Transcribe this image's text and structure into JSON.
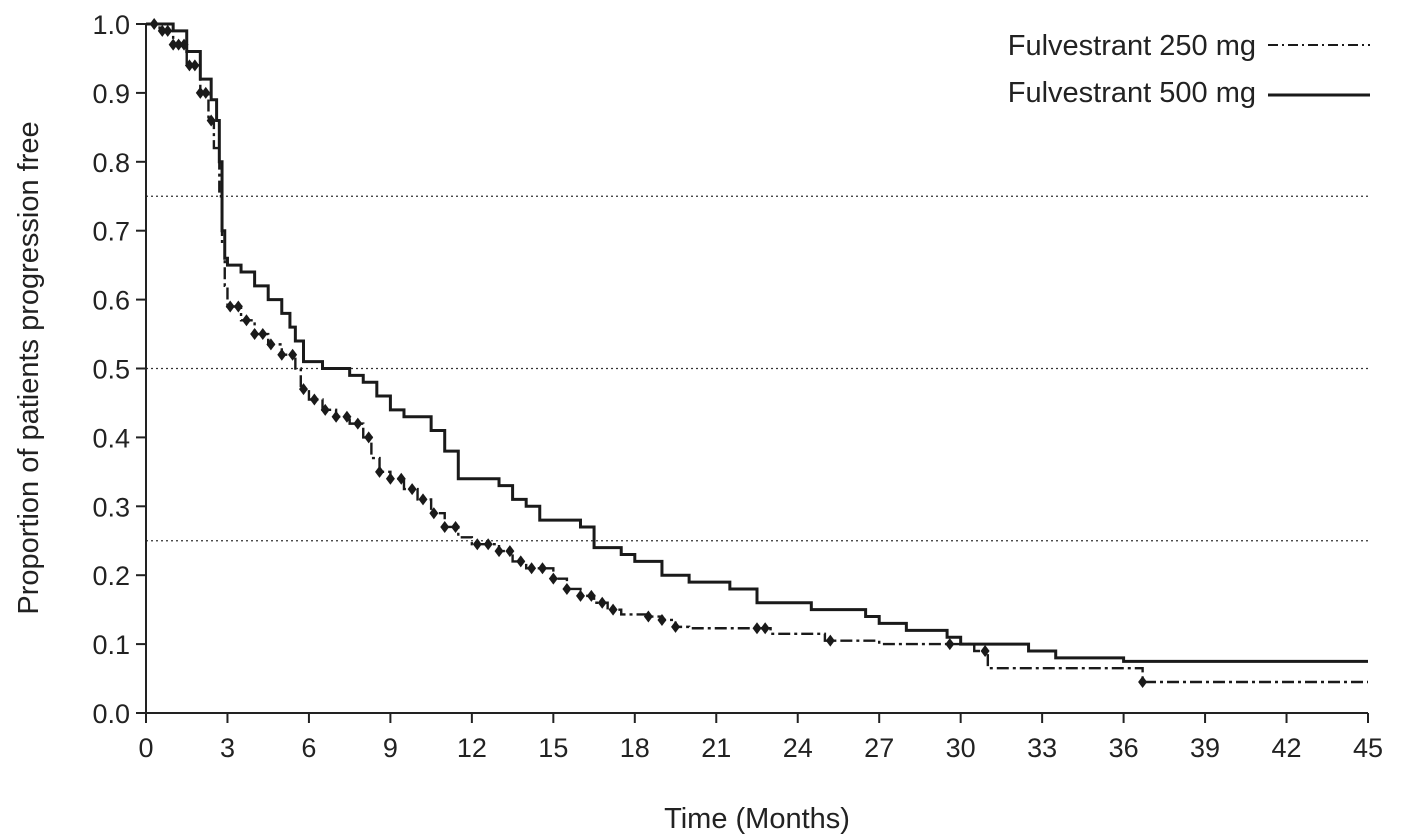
{
  "chart_data": {
    "type": "line",
    "title": "",
    "xlabel": "Time (Months)",
    "ylabel": "Proportion of patients progression free",
    "xlim": [
      0,
      45
    ],
    "ylim": [
      0.0,
      1.0
    ],
    "x_ticks": [
      0,
      3,
      6,
      9,
      12,
      15,
      18,
      21,
      24,
      27,
      30,
      33,
      36,
      39,
      42,
      45
    ],
    "x_tick_labels": [
      "0",
      "3",
      "6",
      "9",
      "12",
      "15",
      "18",
      "21",
      "24",
      "27",
      "30",
      "33",
      "36",
      "39",
      "42",
      "45"
    ],
    "y_ticks": [
      0.0,
      0.1,
      0.2,
      0.3,
      0.4,
      0.5,
      0.6,
      0.7,
      0.8,
      0.9,
      1.0
    ],
    "y_tick_labels": [
      "0.0",
      "0.1",
      "0.2",
      "0.3",
      "0.4",
      "0.5",
      "0.6",
      "0.7",
      "0.8",
      "0.9",
      "1.0"
    ],
    "reference_lines": [
      0.25,
      0.5,
      0.75
    ],
    "grid": false,
    "legend_position": "top-right",
    "series": [
      {
        "name": "Fulvestrant 250 mg",
        "line_style": "dash-dot",
        "color": "#1a1a1a",
        "censor_markers": true,
        "points": [
          [
            0,
            1.0
          ],
          [
            0.5,
            0.99
          ],
          [
            1.0,
            0.97
          ],
          [
            1.5,
            0.94
          ],
          [
            2.0,
            0.9
          ],
          [
            2.3,
            0.86
          ],
          [
            2.5,
            0.82
          ],
          [
            2.7,
            0.75
          ],
          [
            2.8,
            0.68
          ],
          [
            2.9,
            0.62
          ],
          [
            3.0,
            0.59
          ],
          [
            3.5,
            0.57
          ],
          [
            4.0,
            0.55
          ],
          [
            4.5,
            0.535
          ],
          [
            5.0,
            0.52
          ],
          [
            5.5,
            0.5
          ],
          [
            5.7,
            0.47
          ],
          [
            6.0,
            0.455
          ],
          [
            6.5,
            0.44
          ],
          [
            7.0,
            0.43
          ],
          [
            7.5,
            0.42
          ],
          [
            8.0,
            0.4
          ],
          [
            8.3,
            0.37
          ],
          [
            8.6,
            0.35
          ],
          [
            9.0,
            0.34
          ],
          [
            9.5,
            0.325
          ],
          [
            10.0,
            0.31
          ],
          [
            10.5,
            0.29
          ],
          [
            11.0,
            0.27
          ],
          [
            11.5,
            0.255
          ],
          [
            12.0,
            0.245
          ],
          [
            13.0,
            0.235
          ],
          [
            13.5,
            0.22
          ],
          [
            14.0,
            0.21
          ],
          [
            15.0,
            0.195
          ],
          [
            15.5,
            0.18
          ],
          [
            16.0,
            0.17
          ],
          [
            16.5,
            0.16
          ],
          [
            17.0,
            0.15
          ],
          [
            17.5,
            0.143
          ],
          [
            18.5,
            0.14
          ],
          [
            19.0,
            0.135
          ],
          [
            19.5,
            0.125
          ],
          [
            20.0,
            0.123
          ],
          [
            23.0,
            0.115
          ],
          [
            25.0,
            0.105
          ],
          [
            27.0,
            0.1
          ],
          [
            30.0,
            0.1
          ],
          [
            30.5,
            0.09
          ],
          [
            31.0,
            0.065
          ],
          [
            36.5,
            0.065
          ],
          [
            36.7,
            0.045
          ],
          [
            45.0,
            0.045
          ]
        ],
        "censor_times": [
          0.3,
          0.6,
          0.8,
          1.0,
          1.2,
          1.4,
          1.6,
          1.8,
          2.0,
          2.2,
          2.4,
          3.1,
          3.4,
          3.7,
          4.0,
          4.3,
          4.6,
          5.0,
          5.4,
          5.8,
          6.2,
          6.6,
          7.0,
          7.4,
          7.8,
          8.2,
          8.6,
          9.0,
          9.4,
          9.8,
          10.2,
          10.6,
          11.0,
          11.4,
          12.2,
          12.6,
          13.0,
          13.4,
          13.8,
          14.2,
          14.6,
          15.0,
          15.5,
          16.0,
          16.4,
          16.8,
          17.2,
          18.5,
          19.0,
          19.5,
          22.5,
          22.8,
          25.2,
          29.6,
          30.9,
          36.7
        ]
      },
      {
        "name": "Fulvestrant 500 mg",
        "line_style": "solid",
        "color": "#1a1a1a",
        "censor_markers": false,
        "points": [
          [
            0,
            1.0
          ],
          [
            0.5,
            1.0
          ],
          [
            1.0,
            0.99
          ],
          [
            1.5,
            0.96
          ],
          [
            2.0,
            0.92
          ],
          [
            2.4,
            0.89
          ],
          [
            2.6,
            0.86
          ],
          [
            2.7,
            0.8
          ],
          [
            2.8,
            0.7
          ],
          [
            2.9,
            0.66
          ],
          [
            3.0,
            0.65
          ],
          [
            3.5,
            0.64
          ],
          [
            4.0,
            0.62
          ],
          [
            4.5,
            0.6
          ],
          [
            5.0,
            0.58
          ],
          [
            5.3,
            0.56
          ],
          [
            5.5,
            0.54
          ],
          [
            5.8,
            0.51
          ],
          [
            6.5,
            0.5
          ],
          [
            7.5,
            0.49
          ],
          [
            8.0,
            0.48
          ],
          [
            8.5,
            0.46
          ],
          [
            9.0,
            0.44
          ],
          [
            9.5,
            0.43
          ],
          [
            10.5,
            0.41
          ],
          [
            11.0,
            0.38
          ],
          [
            11.5,
            0.34
          ],
          [
            13.0,
            0.33
          ],
          [
            13.5,
            0.31
          ],
          [
            14.0,
            0.3
          ],
          [
            14.5,
            0.28
          ],
          [
            16.0,
            0.27
          ],
          [
            16.5,
            0.24
          ],
          [
            17.5,
            0.23
          ],
          [
            18.0,
            0.22
          ],
          [
            19.0,
            0.2
          ],
          [
            20.0,
            0.19
          ],
          [
            21.5,
            0.18
          ],
          [
            22.5,
            0.16
          ],
          [
            24.5,
            0.15
          ],
          [
            26.5,
            0.14
          ],
          [
            27.0,
            0.13
          ],
          [
            28.0,
            0.12
          ],
          [
            29.5,
            0.11
          ],
          [
            30.0,
            0.1
          ],
          [
            32.5,
            0.09
          ],
          [
            33.5,
            0.08
          ],
          [
            36.0,
            0.075
          ],
          [
            45.0,
            0.075
          ]
        ]
      }
    ]
  }
}
